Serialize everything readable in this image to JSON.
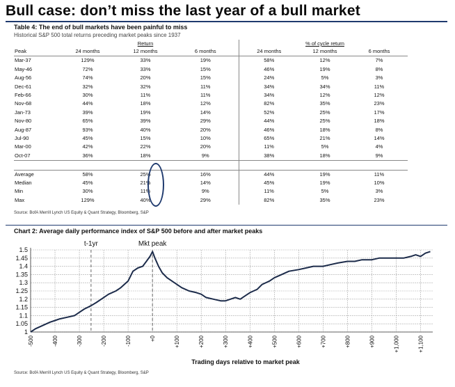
{
  "header": {
    "title": "Bull case: don’t miss the last year of a bull market"
  },
  "table": {
    "title": "Table 4: The end of bull markets have been painful to miss",
    "subtitle": "Historical S&P 500 total returns preceding market peaks since 1937",
    "group_return": "Return",
    "group_cycle": "% of cycle return",
    "columns": [
      "Peak",
      "24 months",
      "12 months",
      "6 months",
      "24 months",
      "12 months",
      "6 months"
    ],
    "rows": [
      [
        "Mar-37",
        "129%",
        "33%",
        "19%",
        "58%",
        "12%",
        "7%"
      ],
      [
        "May-46",
        "72%",
        "33%",
        "15%",
        "46%",
        "19%",
        "8%"
      ],
      [
        "Aug-56",
        "74%",
        "20%",
        "15%",
        "24%",
        "5%",
        "3%"
      ],
      [
        "Dec-61",
        "32%",
        "32%",
        "11%",
        "34%",
        "34%",
        "11%"
      ],
      [
        "Feb-66",
        "30%",
        "11%",
        "11%",
        "34%",
        "12%",
        "12%"
      ],
      [
        "Nov-68",
        "44%",
        "18%",
        "12%",
        "82%",
        "35%",
        "23%"
      ],
      [
        "Jan-73",
        "39%",
        "19%",
        "14%",
        "52%",
        "25%",
        "17%"
      ],
      [
        "Nov-80",
        "65%",
        "39%",
        "29%",
        "44%",
        "25%",
        "18%"
      ],
      [
        "Aug-87",
        "93%",
        "40%",
        "20%",
        "46%",
        "18%",
        "8%"
      ],
      [
        "Jul-90",
        "45%",
        "15%",
        "10%",
        "65%",
        "21%",
        "14%"
      ],
      [
        "Mar-00",
        "42%",
        "22%",
        "20%",
        "11%",
        "5%",
        "4%"
      ],
      [
        "Oct-07",
        "36%",
        "18%",
        "9%",
        "38%",
        "18%",
        "9%"
      ]
    ],
    "summary": [
      [
        "Average",
        "58%",
        "25%",
        "16%",
        "44%",
        "19%",
        "11%"
      ],
      [
        "Median",
        "45%",
        "21%",
        "14%",
        "45%",
        "19%",
        "10%"
      ],
      [
        "Min",
        "30%",
        "11%",
        "9%",
        "11%",
        "5%",
        "3%"
      ],
      [
        "Max",
        "129%",
        "40%",
        "29%",
        "82%",
        "35%",
        "23%"
      ]
    ],
    "source": "Source: BofA Merrill Lynch US Equity & Quant Strategy, Bloomberg, S&P"
  },
  "chart": {
    "title": "Chart 2: Average daily performance index of S&P 500 before and after market peaks",
    "source": "Source: BofA Merrill Lynch US Equity & Quant Strategy, Bloomberg, S&P",
    "annotation_t1": "t-1yr",
    "annotation_peak": "Mkt peak",
    "accent_color": "#1c2b4a"
  },
  "chart_data": {
    "type": "line",
    "title": "Chart 2: Average daily performance index of S&P 500 before and after market peaks",
    "xlabel": "Trading days relative to market peak",
    "ylabel": "",
    "xlim": [
      -500,
      1150
    ],
    "ylim": [
      1,
      1.5
    ],
    "yticks": [
      1,
      1.05,
      1.1,
      1.15,
      1.2,
      1.25,
      1.3,
      1.35,
      1.4,
      1.45,
      1.5
    ],
    "ytick_labels": [
      "1",
      "1.05",
      "1.1",
      "1.15",
      "1.2",
      "1.25",
      "1.3",
      "1.35",
      "1.4",
      "1.45",
      "1.5"
    ],
    "xtick_labels": [
      "-500",
      "-400",
      "-300",
      "-200",
      "-100",
      "+0",
      "+100",
      "+200",
      "+300",
      "+400",
      "+500",
      "+600",
      "+700",
      "+800",
      "+900",
      "+1,000",
      "+1,100"
    ],
    "xticks": [
      -500,
      -400,
      -300,
      -200,
      -100,
      0,
      100,
      200,
      300,
      400,
      500,
      600,
      700,
      800,
      900,
      1000,
      1100
    ],
    "markers": [
      {
        "x": -252,
        "label": "t-1yr"
      },
      {
        "x": 0,
        "label": "Mkt peak"
      }
    ],
    "grid": true,
    "series": [
      {
        "x": [
          -500,
          -480,
          -450,
          -420,
          -400,
          -380,
          -350,
          -320,
          -300,
          -280,
          -252,
          -230,
          -200,
          -180,
          -150,
          -130,
          -100,
          -80,
          -60,
          -40,
          -25,
          -10,
          0,
          10,
          25,
          40,
          60,
          80,
          100,
          120,
          150,
          180,
          200,
          220,
          250,
          280,
          300,
          320,
          340,
          360,
          380,
          400,
          430,
          450,
          480,
          500,
          530,
          560,
          600,
          630,
          660,
          700,
          730,
          760,
          800,
          830,
          860,
          900,
          930,
          960,
          1000,
          1030,
          1060,
          1080,
          1100,
          1120,
          1140
        ],
        "values": [
          1.0,
          1.02,
          1.04,
          1.06,
          1.07,
          1.08,
          1.09,
          1.1,
          1.12,
          1.14,
          1.16,
          1.18,
          1.21,
          1.23,
          1.25,
          1.27,
          1.31,
          1.37,
          1.39,
          1.4,
          1.43,
          1.46,
          1.49,
          1.45,
          1.4,
          1.36,
          1.33,
          1.31,
          1.29,
          1.27,
          1.25,
          1.24,
          1.23,
          1.21,
          1.2,
          1.19,
          1.19,
          1.2,
          1.21,
          1.2,
          1.22,
          1.24,
          1.26,
          1.29,
          1.31,
          1.33,
          1.35,
          1.37,
          1.38,
          1.39,
          1.4,
          1.4,
          1.41,
          1.42,
          1.43,
          1.43,
          1.44,
          1.44,
          1.45,
          1.45,
          1.45,
          1.45,
          1.46,
          1.47,
          1.46,
          1.48,
          1.49
        ]
      }
    ]
  }
}
